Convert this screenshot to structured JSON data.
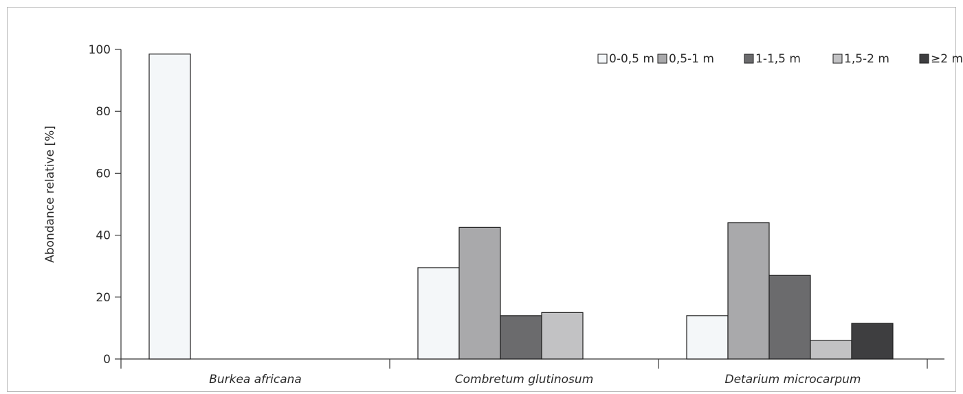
{
  "chart_data": {
    "type": "bar",
    "ylabel": "Abondance relative [%]",
    "ylim": [
      0,
      100
    ],
    "yticks": [
      0,
      20,
      40,
      60,
      80,
      100
    ],
    "grid": false,
    "legend_position": "top-right",
    "categories": [
      "Burkea africana",
      "Combretum glutinosum",
      "Detarium microcarpum"
    ],
    "series": [
      {
        "name": "0-0,5 m",
        "color": "#f4f7f9",
        "values": [
          98.5,
          29.5,
          14
        ]
      },
      {
        "name": "0,5-1 m",
        "color": "#a9a9ab",
        "values": [
          0,
          42.5,
          44
        ]
      },
      {
        "name": "1-1,5 m",
        "color": "#6b6b6d",
        "values": [
          0,
          14,
          27
        ]
      },
      {
        "name": "1,5-2 m",
        "color": "#c2c2c4",
        "values": [
          0,
          15,
          6
        ]
      },
      {
        "name": "≥2 m",
        "color": "#3e3e40",
        "values": [
          0,
          0,
          11.5
        ]
      }
    ]
  }
}
